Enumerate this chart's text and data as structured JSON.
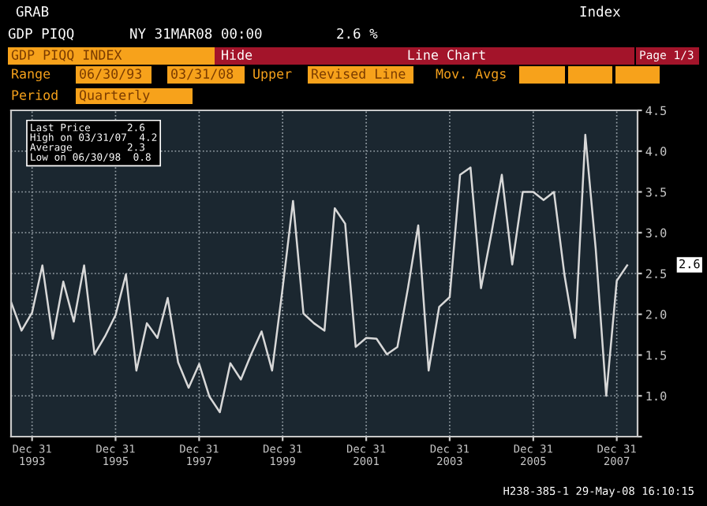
{
  "chart_data": {
    "type": "line",
    "x": [
      "1993-06-30",
      "1993-09-30",
      "1993-12-31",
      "1994-03-31",
      "1994-06-30",
      "1994-09-30",
      "1994-12-31",
      "1995-03-31",
      "1995-06-30",
      "1995-09-30",
      "1995-12-31",
      "1996-03-31",
      "1996-06-30",
      "1996-09-30",
      "1996-12-31",
      "1997-03-31",
      "1997-06-30",
      "1997-09-30",
      "1997-12-31",
      "1998-03-31",
      "1998-06-30",
      "1998-09-30",
      "1998-12-31",
      "1999-03-31",
      "1999-06-30",
      "1999-09-30",
      "1999-12-31",
      "2000-03-31",
      "2000-06-30",
      "2000-09-30",
      "2000-12-31",
      "2001-03-31",
      "2001-06-30",
      "2001-09-30",
      "2001-12-31",
      "2002-03-31",
      "2002-06-30",
      "2002-09-30",
      "2002-12-31",
      "2003-03-31",
      "2003-06-30",
      "2003-09-30",
      "2003-12-31",
      "2004-03-31",
      "2004-06-30",
      "2004-09-30",
      "2004-12-31",
      "2005-03-31",
      "2005-06-30",
      "2005-09-30",
      "2005-12-31",
      "2006-03-31",
      "2006-06-30",
      "2006-09-30",
      "2006-12-31",
      "2007-03-31",
      "2007-06-30",
      "2007-09-30",
      "2007-12-31",
      "2008-03-31"
    ],
    "series": [
      {
        "color": "#d8d8d8",
        "values": [
          2.15,
          1.8,
          2.02,
          2.6,
          1.7,
          2.4,
          1.91,
          2.6,
          1.51,
          1.73,
          1.99,
          2.49,
          1.31,
          1.89,
          1.71,
          2.2,
          1.41,
          1.1,
          1.39,
          0.99,
          0.8,
          1.4,
          1.2,
          1.51,
          1.79,
          1.31,
          2.32,
          3.39,
          2.01,
          1.89,
          1.8,
          3.3,
          3.11,
          1.6,
          1.71,
          1.7,
          1.51,
          1.6,
          2.32,
          3.09,
          1.31,
          2.09,
          2.21,
          3.71,
          3.8,
          2.32,
          3.0,
          3.71,
          2.61,
          3.5,
          3.5,
          3.4,
          3.5,
          2.48,
          1.71,
          4.2,
          2.8,
          1.0,
          2.41,
          2.6
        ]
      }
    ],
    "xlim": [
      "1993-06-30",
      "2008-06-30"
    ],
    "xticks": [
      {
        "value": "1993-12-31",
        "label": "Dec 31\n1993"
      },
      {
        "value": "1995-12-31",
        "label": "Dec 31\n1995"
      },
      {
        "value": "1997-12-31",
        "label": "Dec 31\n1997"
      },
      {
        "value": "1999-12-31",
        "label": "Dec 31\n1999"
      },
      {
        "value": "2001-12-31",
        "label": "Dec 31\n2001"
      },
      {
        "value": "2003-12-31",
        "label": "Dec 31\n2003"
      },
      {
        "value": "2005-12-31",
        "label": "Dec 31\n2005"
      },
      {
        "value": "2007-12-31",
        "label": "Dec 31\n2007"
      }
    ],
    "ylim": [
      0.5,
      4.5
    ],
    "yticks": [
      {
        "value": 0.5,
        "label": null
      },
      {
        "value": 1,
        "label": "1.0"
      },
      {
        "value": 1.5,
        "label": "1.5"
      },
      {
        "value": 2,
        "label": "2.0"
      },
      {
        "value": 2.5,
        "label": "2.5"
      },
      {
        "value": 3,
        "label": "3.0"
      },
      {
        "value": 3.5,
        "label": "3.5"
      },
      {
        "value": 4,
        "label": "4.0"
      },
      {
        "value": 4.5,
        "label": "4.5"
      }
    ],
    "grid": true,
    "line_style": "solid",
    "annotations": [
      "GRAB",
      "Index",
      "GDP PIQQ",
      "NY 31MAR08 00:00",
      "2.6 %",
      "GDP PIQQ INDEX",
      "Hide",
      "Line Chart",
      "Page 1/3",
      "Range",
      "06/30/93",
      "03/31/08",
      "Upper",
      "Revised Line",
      "Mov. Avgs",
      "Period",
      "Quarterly",
      "Last Price      2.6",
      "High on 03/31/07  4.2",
      "Average         2.3",
      "Low on 06/30/98  0.8",
      "2.6",
      "H238-385-1 29-May-08 16:10:15"
    ]
  }
}
